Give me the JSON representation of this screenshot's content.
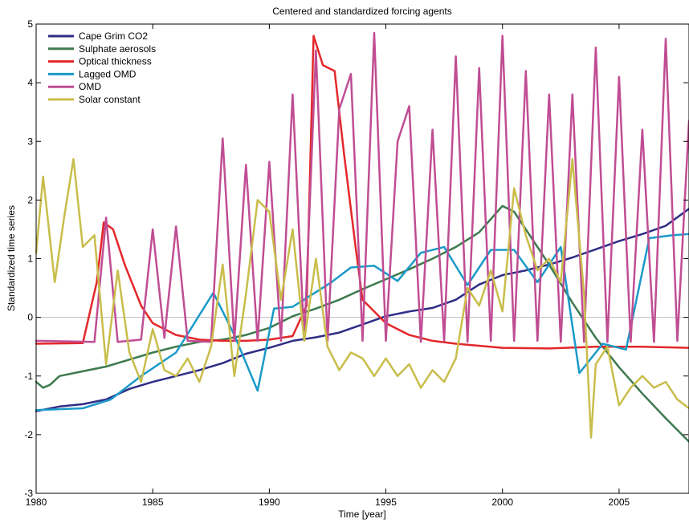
{
  "chart_data": {
    "type": "line",
    "title": "Centered and standardized forcing agents",
    "xlabel": "Time [year]",
    "ylabel": "Standardized time series",
    "xlim": [
      1980,
      2008
    ],
    "ylim": [
      -3,
      5
    ],
    "xticks": [
      1980,
      1985,
      1990,
      1995,
      2000,
      2005
    ],
    "xtick_labels": [
      "1980",
      "1985",
      "1990",
      "1995",
      "2000",
      "2005"
    ],
    "yticks": [
      -3,
      -2,
      -1,
      0,
      1,
      2,
      3,
      4,
      5
    ],
    "ytick_labels": [
      "-3",
      "-2",
      "-1",
      "0",
      "1",
      "2",
      "3",
      "4",
      "5"
    ],
    "grid": false,
    "zero_line": true,
    "legend_position": "top-left",
    "series": [
      {
        "name": "Cape Grim CO2",
        "color": "#2e2d86",
        "x": [
          1980,
          1981,
          1982,
          1983,
          1984,
          1985,
          1986,
          1987,
          1988,
          1989,
          1990,
          1991,
          1992,
          1993,
          1994,
          1995,
          1996,
          1997,
          1998,
          1999,
          2000,
          2001,
          2002,
          2003,
          2004,
          2005,
          2006,
          2007,
          2008
        ],
        "y": [
          -1.6,
          -1.52,
          -1.48,
          -1.4,
          -1.22,
          -1.1,
          -1.0,
          -0.9,
          -0.78,
          -0.62,
          -0.52,
          -0.4,
          -0.34,
          -0.26,
          -0.12,
          0.02,
          0.1,
          0.16,
          0.3,
          0.56,
          0.72,
          0.8,
          0.9,
          1.02,
          1.16,
          1.3,
          1.42,
          1.56,
          1.85
        ]
      },
      {
        "name": "Sulphate aerosols",
        "color": "#3d7a4e",
        "x": [
          1980,
          1980.3,
          1980.6,
          1981,
          1982,
          1983,
          1984,
          1985,
          1986,
          1987,
          1988,
          1989,
          1990,
          1991,
          1992,
          1993,
          1994,
          1995,
          1996,
          1997,
          1998,
          1999,
          2000,
          2000.5,
          2001,
          2002,
          2003,
          2004,
          2005,
          2006,
          2007,
          2008
        ],
        "y": [
          -1.1,
          -1.2,
          -1.15,
          -1.0,
          -0.92,
          -0.84,
          -0.72,
          -0.6,
          -0.5,
          -0.42,
          -0.38,
          -0.3,
          -0.18,
          0.02,
          0.15,
          0.3,
          0.48,
          0.65,
          0.82,
          1.0,
          1.2,
          1.45,
          1.9,
          1.8,
          1.5,
          0.9,
          0.25,
          -0.35,
          -0.85,
          -1.3,
          -1.72,
          -2.12
        ]
      },
      {
        "name": "Optical thickness",
        "color": "#e3272b",
        "x": [
          1980,
          1982,
          1982.6,
          1982.9,
          1983.3,
          1983.8,
          1984.5,
          1985,
          1986,
          1987,
          1988,
          1989,
          1990,
          1991,
          1991.6,
          1991.9,
          1992.3,
          1992.8,
          1993.2,
          1993.7,
          1994,
          1995,
          1996,
          1997,
          1998,
          2000,
          2002,
          2004,
          2006,
          2008
        ],
        "y": [
          -0.45,
          -0.44,
          0.6,
          1.62,
          1.5,
          0.9,
          0.2,
          -0.1,
          -0.3,
          -0.38,
          -0.4,
          -0.4,
          -0.38,
          -0.32,
          0.2,
          4.8,
          4.3,
          4.2,
          2.8,
          1.2,
          0.3,
          -0.1,
          -0.3,
          -0.4,
          -0.45,
          -0.52,
          -0.53,
          -0.5,
          -0.5,
          -0.52
        ]
      },
      {
        "name": "Lagged OMD",
        "color": "#1a9ac8",
        "x": [
          1980,
          1982,
          1983.2,
          1984.5,
          1986,
          1987.6,
          1988.5,
          1989.5,
          1990.2,
          1991,
          1992.6,
          1993.5,
          1994.5,
          1995.5,
          1996.5,
          1997.5,
          1998.5,
          1999.5,
          2000.5,
          2001.5,
          2002.5,
          2003.3,
          2004.3,
          2005.3,
          2006.3,
          2007.3,
          2008
        ],
        "y": [
          -1.58,
          -1.55,
          -1.4,
          -1.0,
          -0.6,
          0.42,
          -0.3,
          -1.25,
          0.15,
          0.18,
          0.58,
          0.85,
          0.88,
          0.62,
          1.1,
          1.2,
          0.55,
          1.15,
          1.15,
          0.6,
          1.2,
          -0.95,
          -0.45,
          -0.55,
          1.35,
          1.4,
          1.42
        ]
      },
      {
        "name": "OMD",
        "color": "#c04d93",
        "x": [
          1980,
          1982.5,
          1983,
          1983.5,
          1984.5,
          1985,
          1985.5,
          1986,
          1986.5,
          1987.5,
          1988,
          1988.5,
          1989,
          1989.5,
          1990,
          1990.5,
          1991,
          1991.5,
          1992,
          1992.5,
          1993,
          1993.5,
          1994,
          1994.5,
          1995,
          1995.5,
          1996,
          1996.5,
          1997,
          1997.5,
          1998,
          1998.5,
          1999,
          1999.5,
          2000,
          2000.5,
          2001,
          2001.5,
          2002,
          2002.5,
          2003,
          2003.5,
          2004,
          2004.5,
          2005,
          2005.5,
          2006,
          2006.5,
          2007,
          2007.5,
          2008
        ],
        "y": [
          -0.4,
          -0.42,
          1.7,
          -0.42,
          -0.38,
          1.5,
          -0.35,
          1.55,
          -0.4,
          -0.42,
          3.05,
          -0.4,
          2.6,
          -0.4,
          2.65,
          -0.4,
          3.8,
          -0.4,
          4.55,
          -0.4,
          3.55,
          4.15,
          -0.4,
          4.85,
          -0.4,
          3.0,
          3.6,
          -0.42,
          3.2,
          -0.4,
          4.45,
          -0.42,
          4.25,
          -0.4,
          4.8,
          -0.4,
          4.2,
          -0.4,
          3.8,
          -0.42,
          3.8,
          -0.42,
          4.6,
          -0.42,
          4.1,
          -0.42,
          3.2,
          -0.42,
          4.75,
          -0.4,
          3.35
        ]
      },
      {
        "name": "Solar constant",
        "color": "#c9bd4b",
        "x": [
          1980,
          1980.3,
          1980.8,
          1981.2,
          1981.6,
          1982,
          1982.5,
          1983,
          1983.5,
          1984,
          1984.5,
          1985,
          1985.5,
          1986,
          1986.5,
          1987,
          1987.5,
          1988,
          1988.5,
          1989,
          1989.5,
          1990,
          1990.5,
          1991,
          1991.5,
          1992,
          1992.5,
          1993,
          1993.5,
          1994,
          1994.5,
          1995,
          1995.5,
          1996,
          1996.5,
          1997,
          1997.5,
          1998,
          1998.5,
          1999,
          1999.5,
          2000,
          2000.5,
          2001,
          2001.5,
          2002,
          2002.5,
          2003,
          2003.5,
          2003.8,
          2004,
          2004.5,
          2005,
          2005.5,
          2006,
          2006.5,
          2007,
          2007.5,
          2008
        ],
        "y": [
          1.1,
          2.4,
          0.6,
          1.7,
          2.7,
          1.2,
          1.4,
          -0.8,
          0.8,
          -0.6,
          -1.1,
          -0.2,
          -0.9,
          -1.0,
          -0.7,
          -1.1,
          -0.5,
          0.9,
          -1.0,
          0.4,
          2.0,
          1.8,
          0.3,
          1.5,
          -0.4,
          1.0,
          -0.5,
          -0.9,
          -0.6,
          -0.7,
          -1.0,
          -0.7,
          -1.0,
          -0.8,
          -1.2,
          -0.9,
          -1.1,
          -0.7,
          0.5,
          0.2,
          0.8,
          0.1,
          2.2,
          1.4,
          0.8,
          1.0,
          0.6,
          2.7,
          0.4,
          -2.05,
          -0.8,
          -0.5,
          -1.5,
          -1.2,
          -1.0,
          -1.2,
          -1.1,
          -1.4,
          -1.55
        ]
      }
    ]
  }
}
